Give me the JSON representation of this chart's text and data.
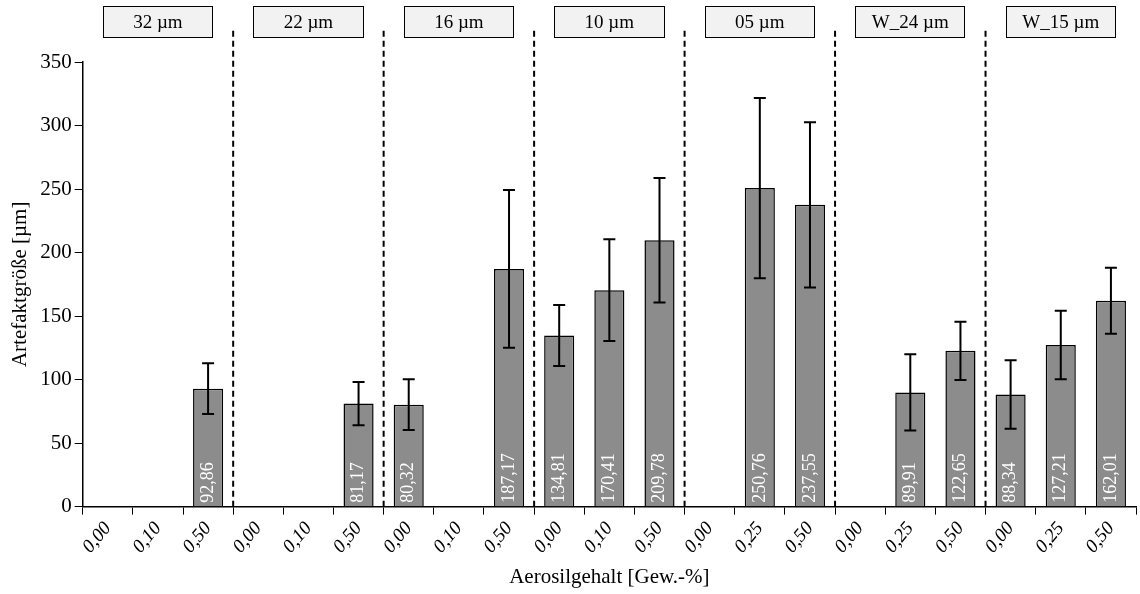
{
  "chart_data": {
    "type": "bar",
    "xlabel": "Aerosilgehalt [Gew.-%]",
    "ylabel": "Artefaktgröße [µm]",
    "annotations": [
      "32 µm",
      "22 µm",
      "16 µm",
      "10 µm",
      "05 µm",
      "W_24 µm",
      "W_15 µm"
    ],
    "categories": [
      "0,00",
      "0,10",
      "0,50",
      "0,00",
      "0,10",
      "0,50",
      "0,00",
      "0,10",
      "0,50",
      "0,00",
      "0,10",
      "0,50",
      "0,00",
      "0,25",
      "0,50",
      "0,00",
      "0,25",
      "0,50",
      "0,00",
      "0,25",
      "0,50"
    ],
    "values": [
      0,
      0,
      92.86,
      0,
      0,
      81.17,
      80.32,
      0,
      187.17,
      134.81,
      170.41,
      209.78,
      0,
      250.76,
      237.55,
      0,
      89.91,
      122.65,
      88.34,
      127.21,
      162.01
    ],
    "errors": [
      null,
      null,
      20,
      null,
      null,
      17,
      20,
      null,
      62,
      24,
      40,
      49,
      null,
      71,
      65,
      null,
      30,
      23,
      27,
      27,
      26
    ],
    "value_labels": [
      null,
      null,
      "92,86",
      null,
      null,
      "81,17",
      "80,32",
      null,
      "187,17",
      "134,81",
      "170,41",
      "209,78",
      null,
      "250,76",
      "237,55",
      null,
      "89,91",
      "122,65",
      "88,34",
      "127,21",
      "162,01"
    ],
    "color": "#8c8c8c",
    "ylim": [
      0,
      350
    ],
    "yticks": [
      0,
      50,
      100,
      150,
      200,
      250,
      300,
      350
    ],
    "grid": false,
    "legend": false
  }
}
